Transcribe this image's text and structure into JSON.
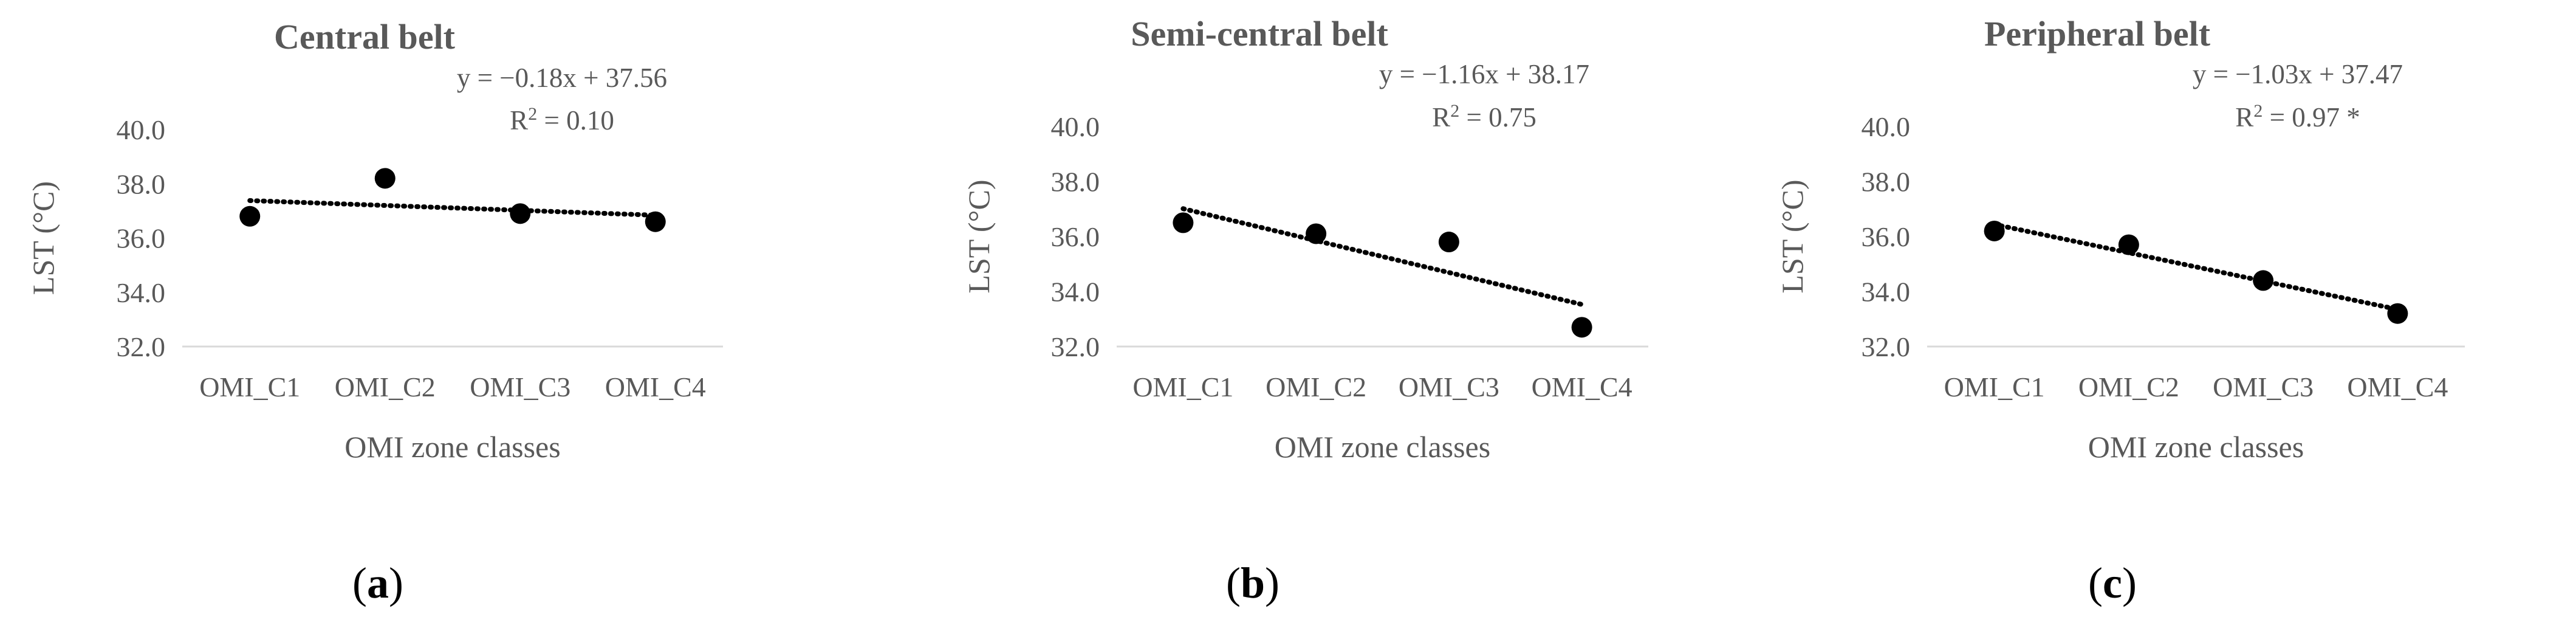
{
  "chart_data": [
    {
      "type": "scatter",
      "title": "Central belt",
      "xlabel": "OMI zone classes",
      "ylabel": "LST (°C)",
      "categories": [
        "OMI_C1",
        "OMI_C2",
        "OMI_C3",
        "OMI_C4"
      ],
      "values": [
        36.8,
        38.2,
        36.9,
        36.6
      ],
      "yticks": [
        "32.0",
        "34.0",
        "36.0",
        "38.0",
        "40.0"
      ],
      "ylim": [
        32,
        40
      ],
      "trendline": {
        "slope": -0.18,
        "intercept": 37.56,
        "style": "dotted"
      },
      "equation": "y = −0.18x + 37.56",
      "r2_prefix": "R",
      "r2_sup": "2",
      "r2_value": " = 0.10",
      "panel_label": "a"
    },
    {
      "type": "scatter",
      "title": "Semi-central belt",
      "xlabel": "OMI zone classes",
      "ylabel": "LST (°C)",
      "categories": [
        "OMI_C1",
        "OMI_C2",
        "OMI_C3",
        "OMI_C4"
      ],
      "values": [
        36.5,
        36.1,
        35.8,
        32.7
      ],
      "yticks": [
        "32.0",
        "34.0",
        "36.0",
        "38.0",
        "40.0"
      ],
      "ylim": [
        32,
        40
      ],
      "trendline": {
        "slope": -1.16,
        "intercept": 38.17,
        "style": "dotted"
      },
      "equation": "y = −1.16x + 38.17",
      "r2_prefix": "R",
      "r2_sup": "2",
      "r2_value": " = 0.75",
      "panel_label": "b"
    },
    {
      "type": "scatter",
      "title": "Peripheral belt",
      "xlabel": "OMI zone classes",
      "ylabel": "LST (°C)",
      "categories": [
        "OMI_C1",
        "OMI_C2",
        "OMI_C3",
        "OMI_C4"
      ],
      "values": [
        36.2,
        35.7,
        34.4,
        33.2
      ],
      "yticks": [
        "32.0",
        "34.0",
        "36.0",
        "38.0",
        "40.0"
      ],
      "ylim": [
        32,
        40
      ],
      "trendline": {
        "slope": -1.03,
        "intercept": 37.47,
        "style": "dotted"
      },
      "equation": "y = −1.03x + 37.47",
      "r2_prefix": "R",
      "r2_sup": "2",
      "r2_value": " = 0.97 *",
      "panel_label": "c"
    }
  ],
  "colors": {
    "text": "#595959",
    "marker": "#000000",
    "trendline": "#000000",
    "axis": "#d9d9d9"
  }
}
